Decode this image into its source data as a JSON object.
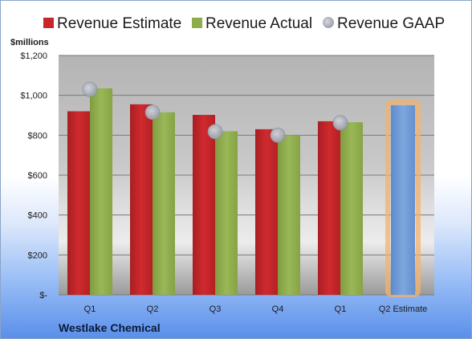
{
  "chart_data": {
    "type": "bar",
    "unit_label": "$millions",
    "company": "Westlake Chemical",
    "categories": [
      "Q1",
      "Q2",
      "Q3",
      "Q4",
      "Q1",
      "Q2 Estimate"
    ],
    "series": [
      {
        "name": "Revenue Estimate",
        "color": "#c8262a",
        "values": [
          920,
          955,
          902,
          830,
          870,
          null
        ]
      },
      {
        "name": "Revenue Actual",
        "color": "#8fac4b",
        "values": [
          1035,
          915,
          820,
          800,
          865,
          null
        ]
      },
      {
        "name": "Revenue GAAP",
        "color": "#b8bcc6",
        "marker": "circle",
        "values": [
          1030,
          915,
          818,
          800,
          862,
          null
        ]
      }
    ],
    "estimate_bar": {
      "category": "Q2 Estimate",
      "value": 950,
      "color": "#6f9ad6",
      "glow_color": "#f4b26b"
    },
    "y_ticks": [
      "$-",
      "$200",
      "$400",
      "$600",
      "$800",
      "$1,000",
      "$1,200"
    ],
    "y_tick_values": [
      0,
      200,
      400,
      600,
      800,
      1000,
      1200
    ],
    "ylim": [
      0,
      1200
    ],
    "grid": true,
    "legend_position": "top"
  }
}
